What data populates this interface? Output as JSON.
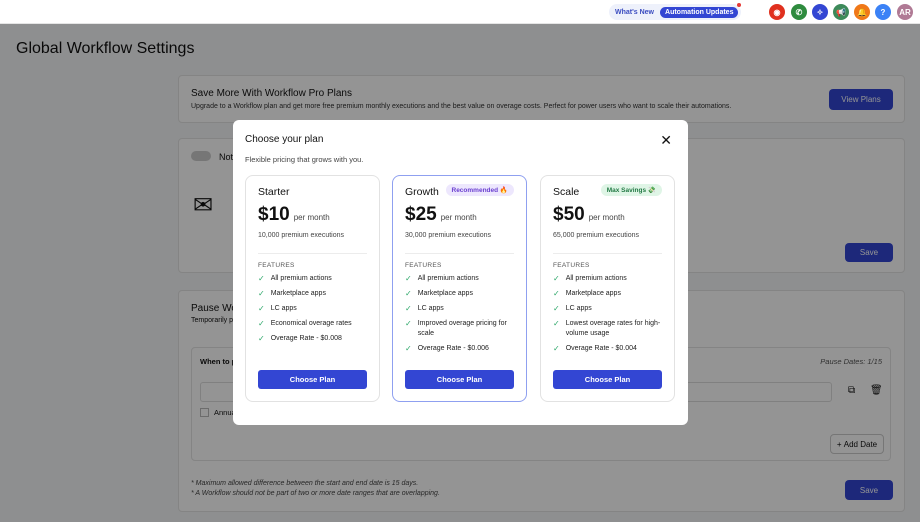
{
  "topbar": {
    "whats_new": "What's New",
    "automation_updates": "Automation Updates",
    "avatar": "AR",
    "help": "?"
  },
  "page": {
    "title": "Global Workflow Settings"
  },
  "promo": {
    "title": "Save More With Workflow Pro Plans",
    "desc": "Upgrade to a Workflow plan and get more free premium monthly executions and the best value on overage costs. Perfect for power users who want to scale their automations.",
    "button": "View Plans"
  },
  "notify": {
    "label_partial": "Not",
    "save": "Save"
  },
  "pause": {
    "title_partial": "Pause Wo",
    "desc_partial": "Temporarily p",
    "when_partial": "When to p",
    "pause_dates": "Pause Dates: 1/15",
    "annual_partial": "Annua",
    "add_date": "Add Date",
    "note1": "* Maximum allowed difference between the start and end date is 15 days.",
    "note2": "* A Workflow should not be part of two or more date ranges that are overlapping.",
    "save": "Save"
  },
  "modal": {
    "title": "Choose your plan",
    "subtitle": "Flexible pricing that grows with you.",
    "features_label": "FEATURES",
    "plans": [
      {
        "name": "Starter",
        "price": "$10",
        "period": "per month",
        "executions": "10,000 premium executions",
        "badge": "",
        "features": [
          "All premium actions",
          "Marketplace apps",
          "LC apps",
          "Economical overage rates",
          "Overage Rate - $0.008"
        ],
        "button": "Choose Plan"
      },
      {
        "name": "Growth",
        "price": "$25",
        "period": "per month",
        "executions": "30,000 premium executions",
        "badge": "Recommended 🔥",
        "features": [
          "All premium actions",
          "Marketplace apps",
          "LC apps",
          "Improved overage pricing for scale",
          "Overage Rate - $0.006"
        ],
        "button": "Choose Plan"
      },
      {
        "name": "Scale",
        "price": "$50",
        "period": "per month",
        "executions": "65,000 premium executions",
        "badge": "Max Savings 💸",
        "features": [
          "All premium actions",
          "Marketplace apps",
          "LC apps",
          "Lowest overage rates for high-volume usage",
          "Overage Rate - $0.004"
        ],
        "button": "Choose Plan"
      }
    ]
  },
  "colors": {
    "primary": "#3346d3",
    "recommended_bg": "#ede7fd",
    "savings_bg": "#dff5e6"
  }
}
